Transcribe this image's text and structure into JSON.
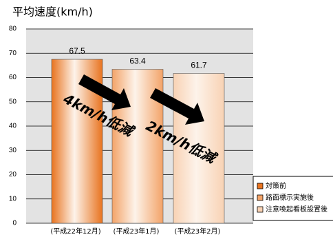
{
  "chart_data": {
    "type": "bar",
    "title": "平均速度(km/h)",
    "categories": [
      "(平成22年12月)",
      "(平成23年1月)",
      "(平成23年2月)"
    ],
    "values": [
      67.5,
      63.4,
      61.7
    ],
    "colors": [
      "#e8731f",
      "#f3a368",
      "#f8d2b4"
    ],
    "legend": [
      "対策前",
      "路面標示実施後",
      "注意喚起看板設置後"
    ],
    "ylim": [
      0,
      80
    ],
    "yticks": [
      0,
      10,
      20,
      30,
      40,
      50,
      60,
      70,
      80
    ],
    "grid": true,
    "annotations": [
      "4km/h低減",
      "2km/h低減"
    ]
  }
}
